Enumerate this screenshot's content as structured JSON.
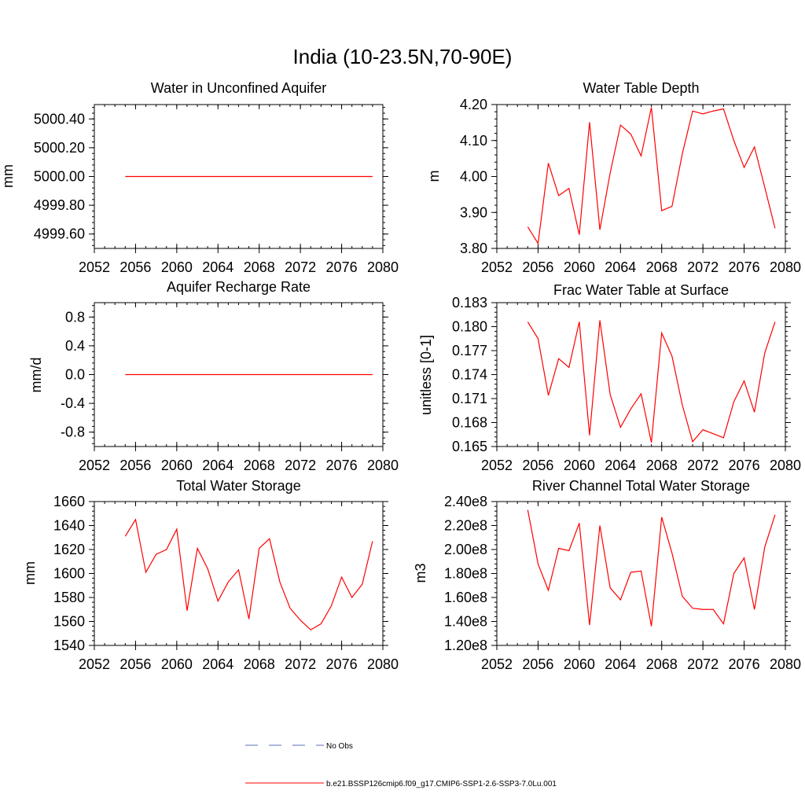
{
  "figure": {
    "title": "India (10-23.5N,70-90E)"
  },
  "legend": {
    "items": [
      {
        "label": "No Obs",
        "style": "dashed",
        "color": "#5b6fb8"
      },
      {
        "label": "b.e21.BSSP126cmip6.f09_g17.CMIP6-SSP1-2.6-SSP3-7.0Lu.001",
        "style": "solid",
        "color": "#ff0000"
      }
    ]
  },
  "chart_data": [
    {
      "type": "line",
      "title": "Water in Unconfined Aquifer",
      "ylabel": "mm",
      "xlim": [
        2052,
        2080
      ],
      "ylim": [
        4999.5,
        5000.5
      ],
      "xticks": [
        2052,
        2056,
        2060,
        2064,
        2068,
        2072,
        2076,
        2080
      ],
      "xtick_labels": [
        "2052",
        "2056",
        "2060",
        "2064",
        "2068",
        "2072",
        "2076",
        "2080"
      ],
      "yticks": [
        4999.6,
        4999.8,
        5000.0,
        5000.2,
        5000.4
      ],
      "ytick_labels": [
        "4999.60",
        "4999.80",
        "5000.00",
        "5000.20",
        "5000.40"
      ],
      "series": [
        {
          "color": "#ff0000",
          "x": [
            2055,
            2056,
            2057,
            2058,
            2059,
            2060,
            2061,
            2062,
            2063,
            2064,
            2065,
            2066,
            2067,
            2068,
            2069,
            2070,
            2071,
            2072,
            2073,
            2074,
            2075,
            2076,
            2077,
            2078,
            2079
          ],
          "y": [
            5000,
            5000,
            5000,
            5000,
            5000,
            5000,
            5000,
            5000,
            5000,
            5000,
            5000,
            5000,
            5000,
            5000,
            5000,
            5000,
            5000,
            5000,
            5000,
            5000,
            5000,
            5000,
            5000,
            5000,
            5000
          ]
        }
      ]
    },
    {
      "type": "line",
      "title": "Water Table Depth",
      "ylabel": "m",
      "xlim": [
        2052,
        2080
      ],
      "ylim": [
        3.8,
        4.2
      ],
      "xticks": [
        2052,
        2056,
        2060,
        2064,
        2068,
        2072,
        2076,
        2080
      ],
      "xtick_labels": [
        "2052",
        "2056",
        "2060",
        "2064",
        "2068",
        "2072",
        "2076",
        "2080"
      ],
      "yticks": [
        3.8,
        3.9,
        4.0,
        4.1,
        4.2
      ],
      "ytick_labels": [
        "3.80",
        "3.90",
        "4.00",
        "4.10",
        "4.20"
      ],
      "series": [
        {
          "color": "#ff0000",
          "x": [
            2055,
            2056,
            2057,
            2058,
            2059,
            2060,
            2061,
            2062,
            2063,
            2064,
            2065,
            2066,
            2067,
            2068,
            2069,
            2070,
            2071,
            2072,
            2073,
            2074,
            2075,
            2076,
            2077,
            2078,
            2079
          ],
          "y": [
            3.86,
            3.814,
            4.037,
            3.947,
            3.967,
            3.838,
            4.151,
            3.852,
            4.01,
            4.143,
            4.118,
            4.057,
            4.192,
            3.905,
            3.917,
            4.063,
            4.182,
            4.174,
            4.182,
            4.188,
            4.1,
            4.025,
            4.082,
            3.97,
            3.856
          ]
        }
      ]
    },
    {
      "type": "line",
      "title": "Aquifer Recharge Rate",
      "ylabel": "mm/d",
      "xlim": [
        2052,
        2080
      ],
      "ylim": [
        -1.0,
        1.0
      ],
      "xticks": [
        2052,
        2056,
        2060,
        2064,
        2068,
        2072,
        2076,
        2080
      ],
      "xtick_labels": [
        "2052",
        "2056",
        "2060",
        "2064",
        "2068",
        "2072",
        "2076",
        "2080"
      ],
      "yticks": [
        -0.8,
        -0.4,
        0.0,
        0.4,
        0.8
      ],
      "ytick_labels": [
        "-0.8",
        "-0.4",
        "0.0",
        "0.4",
        "0.8"
      ],
      "series": [
        {
          "color": "#ff0000",
          "x": [
            2055,
            2056,
            2057,
            2058,
            2059,
            2060,
            2061,
            2062,
            2063,
            2064,
            2065,
            2066,
            2067,
            2068,
            2069,
            2070,
            2071,
            2072,
            2073,
            2074,
            2075,
            2076,
            2077,
            2078,
            2079
          ],
          "y": [
            0,
            0,
            0,
            0,
            0,
            0,
            0,
            0,
            0,
            0,
            0,
            0,
            0,
            0,
            0,
            0,
            0,
            0,
            0,
            0,
            0,
            0,
            0,
            0,
            0
          ]
        }
      ]
    },
    {
      "type": "line",
      "title": "Frac Water Table at Surface",
      "ylabel": "unitless [0-1]",
      "xlim": [
        2052,
        2080
      ],
      "ylim": [
        0.165,
        0.183
      ],
      "xticks": [
        2052,
        2056,
        2060,
        2064,
        2068,
        2072,
        2076,
        2080
      ],
      "xtick_labels": [
        "2052",
        "2056",
        "2060",
        "2064",
        "2068",
        "2072",
        "2076",
        "2080"
      ],
      "yticks": [
        0.165,
        0.168,
        0.171,
        0.174,
        0.177,
        0.18,
        0.183
      ],
      "ytick_labels": [
        "0.165",
        "0.168",
        "0.171",
        "0.174",
        "0.177",
        "0.180",
        "0.183"
      ],
      "series": [
        {
          "color": "#ff0000",
          "x": [
            2055,
            2056,
            2057,
            2058,
            2059,
            2060,
            2061,
            2062,
            2063,
            2064,
            2065,
            2066,
            2067,
            2068,
            2069,
            2070,
            2071,
            2072,
            2073,
            2074,
            2075,
            2076,
            2077,
            2078,
            2079
          ],
          "y": [
            0.1806,
            0.1785,
            0.1714,
            0.176,
            0.1749,
            0.1806,
            0.1664,
            0.1808,
            0.1715,
            0.1674,
            0.1697,
            0.1716,
            0.1655,
            0.1792,
            0.1763,
            0.1702,
            0.1656,
            0.1671,
            0.1666,
            0.1661,
            0.1706,
            0.1732,
            0.1693,
            0.1767,
            0.1806
          ]
        }
      ]
    },
    {
      "type": "line",
      "title": "Total Water Storage",
      "ylabel": "mm",
      "xlim": [
        2052,
        2080
      ],
      "ylim": [
        1540,
        1660
      ],
      "xticks": [
        2052,
        2056,
        2060,
        2064,
        2068,
        2072,
        2076,
        2080
      ],
      "xtick_labels": [
        "2052",
        "2056",
        "2060",
        "2064",
        "2068",
        "2072",
        "2076",
        "2080"
      ],
      "yticks": [
        1540,
        1560,
        1580,
        1600,
        1620,
        1640,
        1660
      ],
      "ytick_labels": [
        "1540",
        "1560",
        "1580",
        "1600",
        "1620",
        "1640",
        "1660"
      ],
      "series": [
        {
          "color": "#ff0000",
          "x": [
            2055,
            2056,
            2057,
            2058,
            2059,
            2060,
            2061,
            2062,
            2063,
            2064,
            2065,
            2066,
            2067,
            2068,
            2069,
            2070,
            2071,
            2072,
            2073,
            2074,
            2075,
            2076,
            2077,
            2078,
            2079
          ],
          "y": [
            1631,
            1645,
            1601,
            1616,
            1620,
            1637,
            1569,
            1621,
            1604,
            1577,
            1593,
            1603,
            1562,
            1621,
            1629,
            1593,
            1571,
            1561,
            1553,
            1558,
            1573,
            1597,
            1580,
            1591,
            1627
          ]
        }
      ]
    },
    {
      "type": "line",
      "title": "River Channel Total Water Storage",
      "ylabel": "m3",
      "xlim": [
        2052,
        2080
      ],
      "ylim": [
        120000000,
        240000000
      ],
      "xticks": [
        2052,
        2056,
        2060,
        2064,
        2068,
        2072,
        2076,
        2080
      ],
      "xtick_labels": [
        "2052",
        "2056",
        "2060",
        "2064",
        "2068",
        "2072",
        "2076",
        "2080"
      ],
      "yticks": [
        120000000,
        140000000,
        160000000,
        180000000,
        200000000,
        220000000,
        240000000
      ],
      "ytick_labels": [
        "1.20e8",
        "1.40e8",
        "1.60e8",
        "1.80e8",
        "2.00e8",
        "2.20e8",
        "2.40e8"
      ],
      "series": [
        {
          "color": "#ff0000",
          "x": [
            2055,
            2056,
            2057,
            2058,
            2059,
            2060,
            2061,
            2062,
            2063,
            2064,
            2065,
            2066,
            2067,
            2068,
            2069,
            2070,
            2071,
            2072,
            2073,
            2074,
            2075,
            2076,
            2077,
            2078,
            2079
          ],
          "y": [
            233000000,
            188000000,
            166000000,
            201000000,
            199000000,
            222000000,
            137000000,
            220000000,
            168000000,
            158000000,
            181000000,
            182000000,
            136000000,
            227000000,
            197000000,
            161000000,
            151000000,
            150000000,
            150000000,
            138000000,
            180000000,
            193000000,
            150000000,
            202000000,
            229000000
          ]
        }
      ]
    }
  ]
}
